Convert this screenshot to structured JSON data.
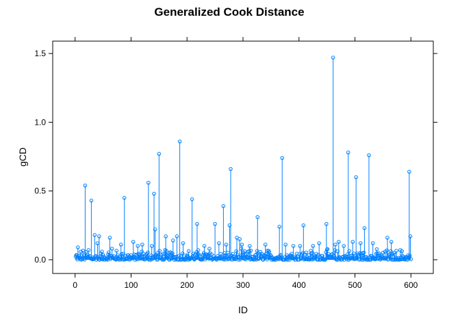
{
  "chart_data": {
    "type": "scatter",
    "style": "lollipop",
    "title": "Generalized Cook Distance",
    "xlabel": "ID",
    "ylabel": "gCD",
    "xlim": [
      -40,
      640
    ],
    "ylim": [
      -0.1,
      1.59
    ],
    "x_ticks": [
      0,
      100,
      200,
      300,
      400,
      500,
      600
    ],
    "y_ticks": [
      0.0,
      0.5,
      1.0,
      1.5
    ],
    "y_tick_labels": [
      "0.0",
      "0.5",
      "1.0",
      "1.5"
    ],
    "x_tick_labels": [
      "0",
      "100",
      "200",
      "300",
      "400",
      "500",
      "600"
    ],
    "color": "#0080ff",
    "n_points": 600,
    "baseline_value": 0.0,
    "notable_points": [
      {
        "x": 5,
        "y": 0.09
      },
      {
        "x": 18,
        "y": 0.54
      },
      {
        "x": 24,
        "y": 0.07
      },
      {
        "x": 29,
        "y": 0.43
      },
      {
        "x": 35,
        "y": 0.18
      },
      {
        "x": 40,
        "y": 0.12
      },
      {
        "x": 43,
        "y": 0.17
      },
      {
        "x": 62,
        "y": 0.16
      },
      {
        "x": 66,
        "y": 0.08
      },
      {
        "x": 82,
        "y": 0.11
      },
      {
        "x": 88,
        "y": 0.45
      },
      {
        "x": 104,
        "y": 0.13
      },
      {
        "x": 112,
        "y": 0.1
      },
      {
        "x": 120,
        "y": 0.11
      },
      {
        "x": 131,
        "y": 0.56
      },
      {
        "x": 137,
        "y": 0.1
      },
      {
        "x": 141,
        "y": 0.48
      },
      {
        "x": 143,
        "y": 0.22
      },
      {
        "x": 150,
        "y": 0.77
      },
      {
        "x": 162,
        "y": 0.17
      },
      {
        "x": 175,
        "y": 0.14
      },
      {
        "x": 182,
        "y": 0.17
      },
      {
        "x": 187,
        "y": 0.86
      },
      {
        "x": 193,
        "y": 0.12
      },
      {
        "x": 209,
        "y": 0.44
      },
      {
        "x": 218,
        "y": 0.26
      },
      {
        "x": 231,
        "y": 0.1
      },
      {
        "x": 240,
        "y": 0.08
      },
      {
        "x": 250,
        "y": 0.26
      },
      {
        "x": 257,
        "y": 0.12
      },
      {
        "x": 265,
        "y": 0.39
      },
      {
        "x": 270,
        "y": 0.11
      },
      {
        "x": 276,
        "y": 0.25
      },
      {
        "x": 278,
        "y": 0.66
      },
      {
        "x": 289,
        "y": 0.16
      },
      {
        "x": 294,
        "y": 0.15
      },
      {
        "x": 298,
        "y": 0.11
      },
      {
        "x": 312,
        "y": 0.1
      },
      {
        "x": 326,
        "y": 0.31
      },
      {
        "x": 340,
        "y": 0.11
      },
      {
        "x": 365,
        "y": 0.24
      },
      {
        "x": 370,
        "y": 0.74
      },
      {
        "x": 376,
        "y": 0.11
      },
      {
        "x": 390,
        "y": 0.1
      },
      {
        "x": 402,
        "y": 0.1
      },
      {
        "x": 408,
        "y": 0.25
      },
      {
        "x": 425,
        "y": 0.1
      },
      {
        "x": 436,
        "y": 0.12
      },
      {
        "x": 449,
        "y": 0.26
      },
      {
        "x": 461,
        "y": 1.47
      },
      {
        "x": 465,
        "y": 0.11
      },
      {
        "x": 471,
        "y": 0.13
      },
      {
        "x": 480,
        "y": 0.1
      },
      {
        "x": 488,
        "y": 0.78
      },
      {
        "x": 496,
        "y": 0.13
      },
      {
        "x": 502,
        "y": 0.6
      },
      {
        "x": 510,
        "y": 0.12
      },
      {
        "x": 517,
        "y": 0.23
      },
      {
        "x": 525,
        "y": 0.76
      },
      {
        "x": 532,
        "y": 0.12
      },
      {
        "x": 558,
        "y": 0.16
      },
      {
        "x": 565,
        "y": 0.13
      },
      {
        "x": 581,
        "y": 0.07
      },
      {
        "x": 597,
        "y": 0.64
      },
      {
        "x": 599,
        "y": 0.17
      }
    ],
    "background_max": 0.06
  }
}
